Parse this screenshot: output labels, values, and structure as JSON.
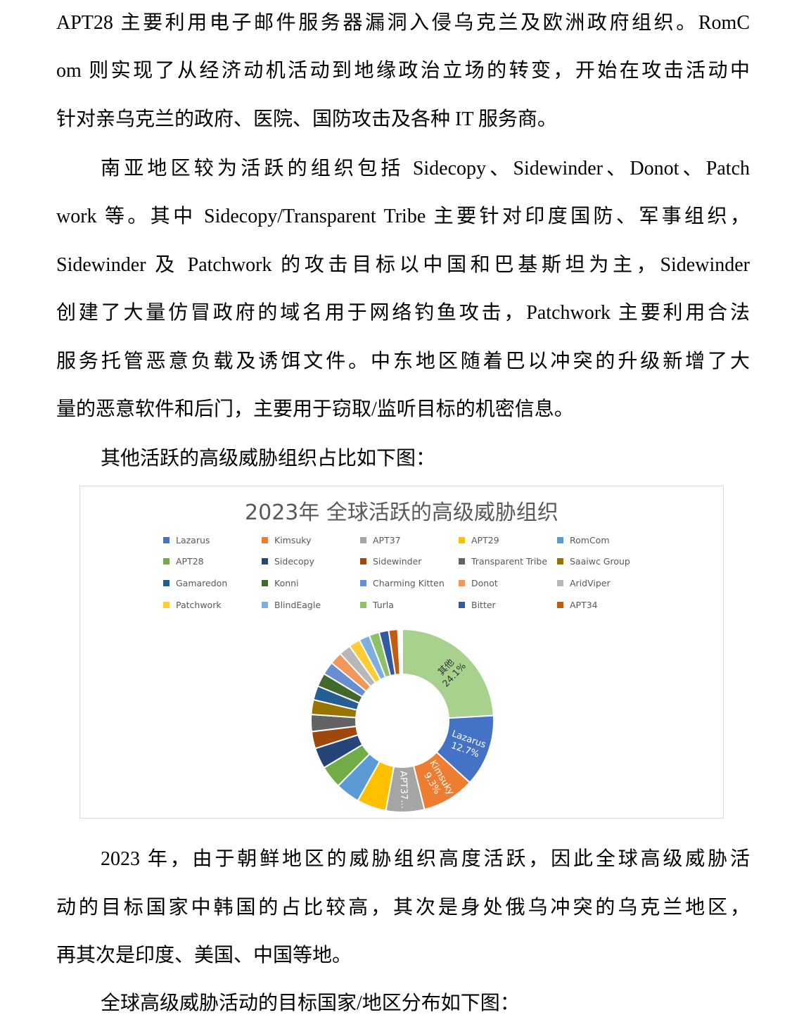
{
  "paragraphs_top": [
    {
      "text": "APT28 主要利用电子邮件服务器漏洞入侵乌克兰及欧洲政府组织。RomC",
      "indent": false,
      "last": false
    },
    {
      "text": "om 则实现了从经济动机活动到地缘政治立场的转变，开始在攻击活动中",
      "indent": false,
      "last": false
    },
    {
      "text": "针对亲乌克兰的政府、医院、国防攻击及各种 IT 服务商。",
      "indent": false,
      "last": true
    },
    {
      "text": "南亚地区较为活跃的组织包括 Sidecopy、Sidewinder、Donot、Patch",
      "indent": true,
      "last": false
    },
    {
      "text": "work 等。其中 Sidecopy/Transparent Tribe 主要针对印度国防、军事组织，",
      "indent": false,
      "last": false
    },
    {
      "text": "Sidewinder 及 Patchwork 的攻击目标以中国和巴基斯坦为主，Sidewinder",
      "indent": false,
      "last": false
    },
    {
      "text": "创建了大量仿冒政府的域名用于网络钓鱼攻击，Patchwork 主要利用合法",
      "indent": false,
      "last": false
    },
    {
      "text": "服务托管恶意负载及诱饵文件。中东地区随着巴以冲突的升级新增了大",
      "indent": false,
      "last": false
    },
    {
      "text": "量的恶意软件和后门，主要用于窃取/监听目标的机密信息。",
      "indent": false,
      "last": true
    },
    {
      "text": "其他活跃的高级威胁组织占比如下图：",
      "indent": true,
      "last": true
    }
  ],
  "paragraphs_bottom": [
    {
      "text": "2023 年，由于朝鲜地区的威胁组织高度活跃，因此全球高级威胁活",
      "indent": true,
      "last": false
    },
    {
      "text": "动的目标国家中韩国的占比较高，其次是身处俄乌冲突的乌克兰地区，",
      "indent": false,
      "last": false
    },
    {
      "text": "再其次是印度、美国、中国等地。",
      "indent": false,
      "last": true
    },
    {
      "text": "全球高级威胁活动的目标国家/地区分布如下图：",
      "indent": true,
      "last": true
    }
  ],
  "chart_data": {
    "type": "pie",
    "donut": true,
    "title": "2023年 全球活跃的高级威胁组织",
    "legend_position": "top",
    "slices": [
      {
        "name": "其他",
        "value": 24.1,
        "color": "#a9d18e",
        "label": "其他\n24.1%"
      },
      {
        "name": "Lazarus",
        "value": 12.7,
        "color": "#4472c4",
        "label": "Lazarus\n12.7%"
      },
      {
        "name": "Kimsuky",
        "value": 9.3,
        "color": "#ed7d31",
        "label": "Kimsuky\n9.3%"
      },
      {
        "name": "APT37",
        "value": 6.8,
        "color": "#a5a5a5",
        "label": "APT37..."
      },
      {
        "name": "APT29",
        "value": 5.2,
        "color": "#ffc000"
      },
      {
        "name": "RomCom",
        "value": 4.3,
        "color": "#5b9bd5"
      },
      {
        "name": "APT28",
        "value": 4.0,
        "color": "#70ad47"
      },
      {
        "name": "Sidecopy",
        "value": 3.7,
        "color": "#264478"
      },
      {
        "name": "Sidewinder",
        "value": 3.0,
        "color": "#9e480e"
      },
      {
        "name": "Transparent Tribe",
        "value": 3.0,
        "color": "#636363"
      },
      {
        "name": "Saaiwc Group",
        "value": 2.6,
        "color": "#997300"
      },
      {
        "name": "Gamaredon",
        "value": 2.5,
        "color": "#255e91"
      },
      {
        "name": "Konni",
        "value": 2.4,
        "color": "#43682b"
      },
      {
        "name": "Charming Kitten",
        "value": 2.3,
        "color": "#698ed0"
      },
      {
        "name": "Donot",
        "value": 2.2,
        "color": "#f1975a"
      },
      {
        "name": "AridViper",
        "value": 2.1,
        "color": "#b7b7b7"
      },
      {
        "name": "Patchwork",
        "value": 2.0,
        "color": "#ffcd33"
      },
      {
        "name": "BlindEagle",
        "value": 1.9,
        "color": "#7cafdd"
      },
      {
        "name": "Turla",
        "value": 1.8,
        "color": "#8cc168"
      },
      {
        "name": "Bitter",
        "value": 1.7,
        "color": "#335aa1"
      },
      {
        "name": "APT34",
        "value": 1.6,
        "color": "#c55a11"
      }
    ]
  }
}
